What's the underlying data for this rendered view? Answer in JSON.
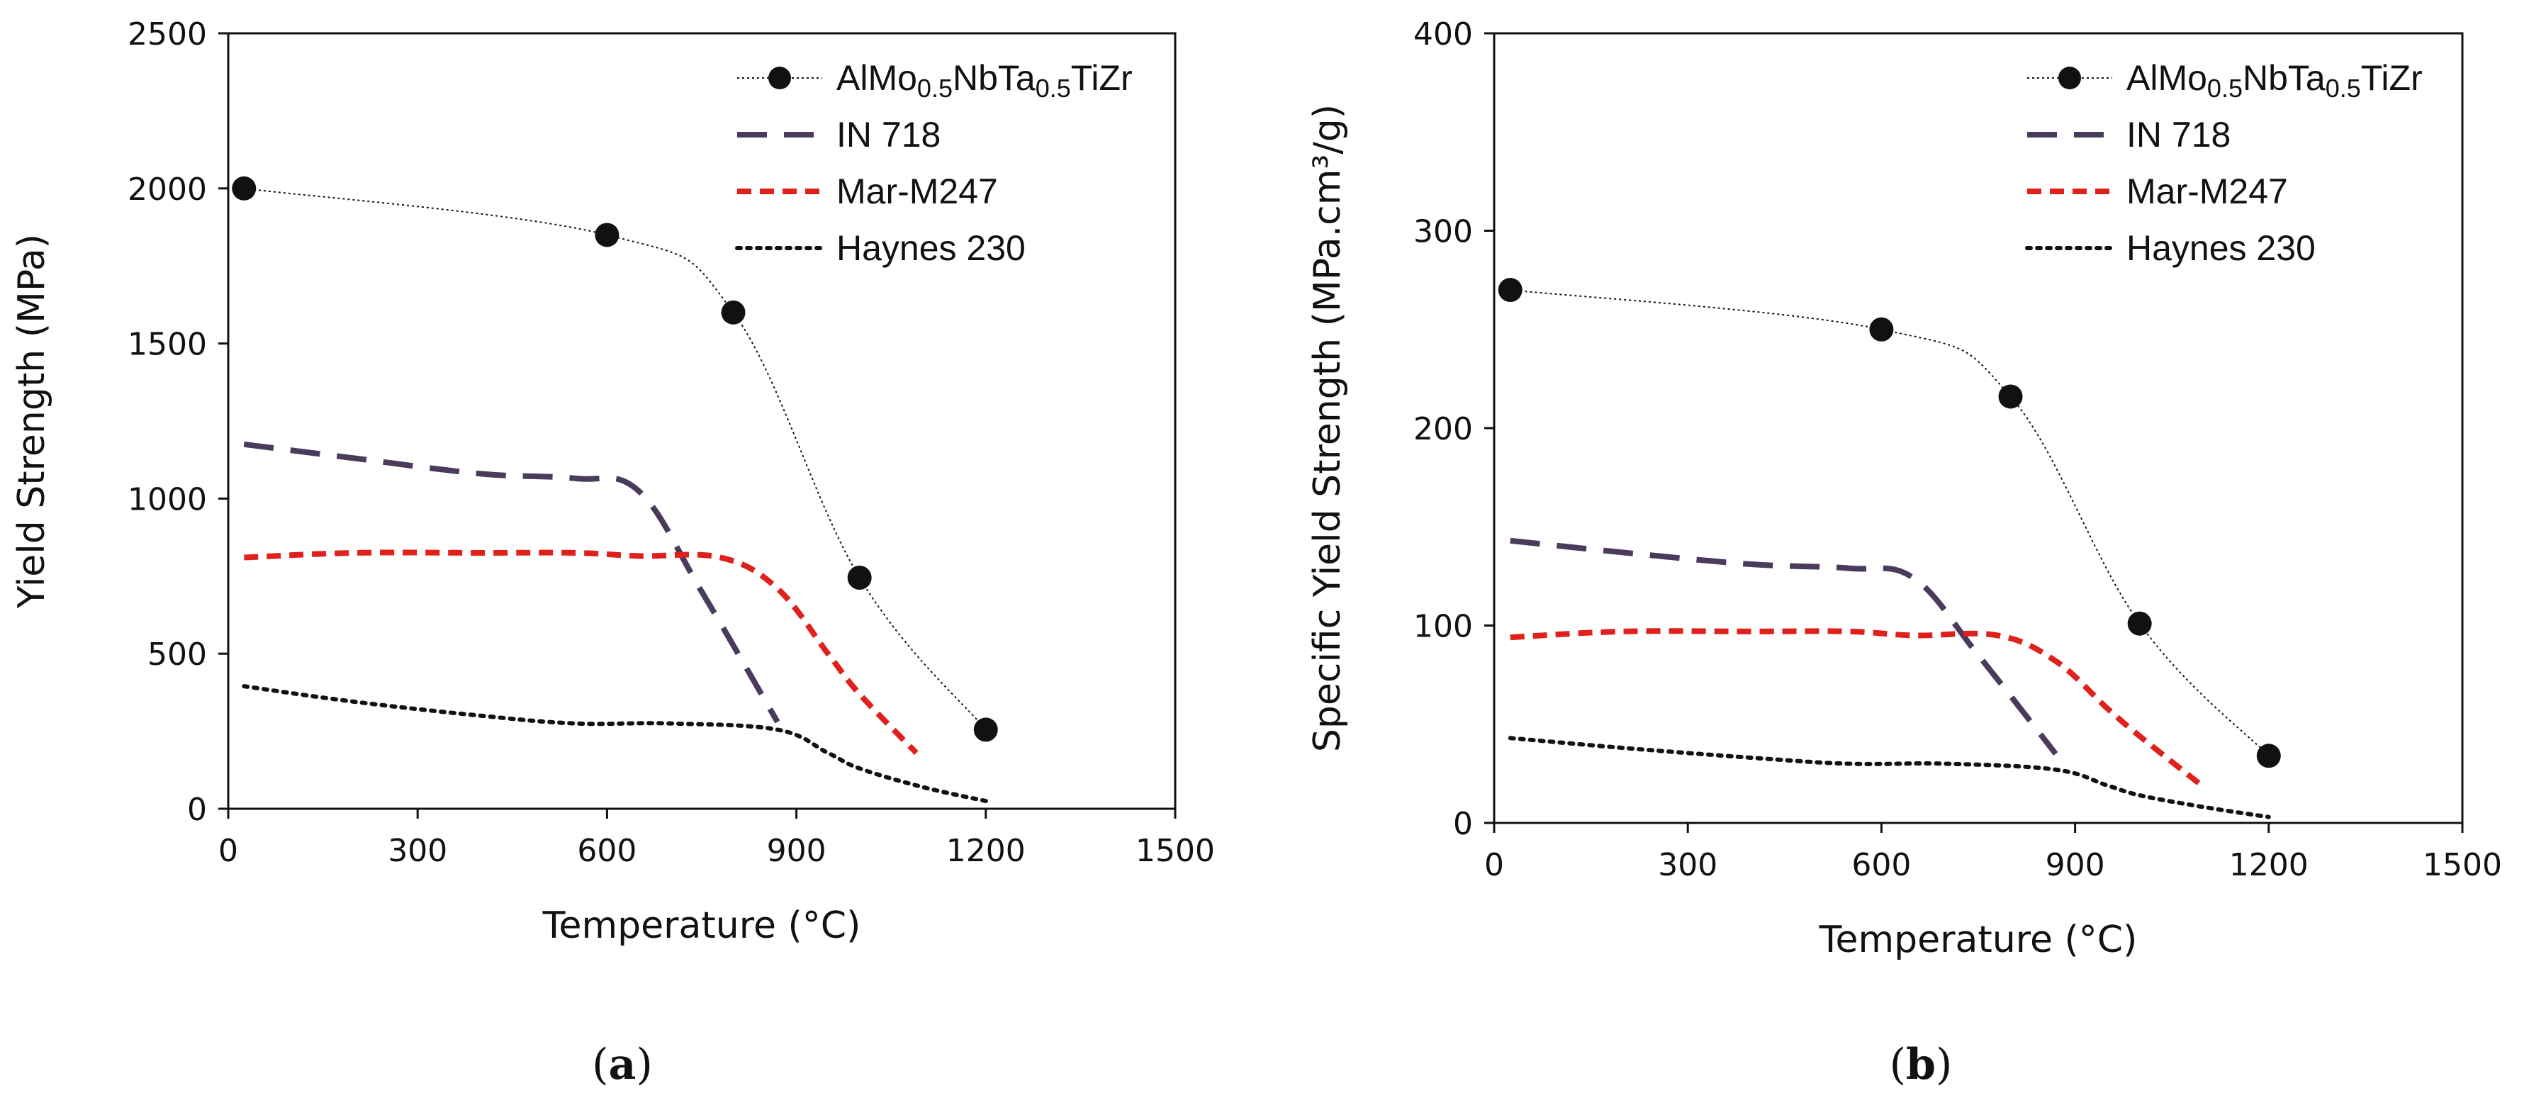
{
  "colors": {
    "alloy": "#111111",
    "in718": "#4a3b5c",
    "marm247": "#e0201b",
    "haynes230": "#111111"
  },
  "chart_data": [
    {
      "id": "a",
      "type": "line",
      "caption": {
        "open": "(",
        "label": "a",
        "close": ")"
      },
      "xlabel": "Temperature  (°C)",
      "ylabel": "Yield Strength  (MPa)",
      "xlim": [
        0,
        1500
      ],
      "ylim": [
        0,
        2500
      ],
      "xticks": [
        "0",
        "300",
        "600",
        "900",
        "1200",
        "1500"
      ],
      "yticks": [
        "0",
        "500",
        "1000",
        "1500",
        "2000",
        "2500"
      ],
      "legend": [
        {
          "name": "AlMo",
          "sub1": "0.5",
          "mid": "NbTa",
          "sub2": "0.5",
          "tail": "TiZr"
        },
        {
          "name": "IN 718"
        },
        {
          "name": "Mar-M247"
        },
        {
          "name": "Haynes 230"
        }
      ],
      "series": [
        {
          "name": "AlMo0.5NbTa0.5TiZr",
          "style": "dotted-markers",
          "x": [
            25,
            600,
            800,
            1000,
            1200
          ],
          "y": [
            2000,
            1850,
            1600,
            745,
            255
          ]
        },
        {
          "name": "IN 718",
          "style": "long-dash",
          "x": [
            25,
            200,
            400,
            550,
            650,
            750,
            870
          ],
          "y": [
            1175,
            1130,
            1080,
            1065,
            1025,
            700,
            280
          ]
        },
        {
          "name": "Mar-M247",
          "style": "short-dash",
          "x": [
            25,
            200,
            400,
            550,
            650,
            780,
            870,
            950,
            1000,
            1090
          ],
          "y": [
            810,
            825,
            825,
            825,
            815,
            810,
            710,
            500,
            370,
            180
          ]
        },
        {
          "name": "Haynes 230",
          "style": "dots",
          "x": [
            25,
            200,
            400,
            550,
            700,
            870,
            950,
            1000,
            1100,
            1200
          ],
          "y": [
            395,
            345,
            300,
            275,
            275,
            255,
            180,
            130,
            70,
            25
          ]
        }
      ]
    },
    {
      "id": "b",
      "type": "line",
      "caption": {
        "open": "(",
        "label": "b",
        "close": ")"
      },
      "xlabel": "Temperature  (°C)",
      "ylabel": "Specific Yield Strength  (MPa.cm³/g)",
      "xlim": [
        0,
        1500
      ],
      "ylim": [
        0,
        400
      ],
      "xticks": [
        "0",
        "300",
        "600",
        "900",
        "1200",
        "1500"
      ],
      "yticks": [
        "0",
        "100",
        "200",
        "300",
        "400"
      ],
      "legend": [
        {
          "name": "AlMo",
          "sub1": "0.5",
          "mid": "NbTa",
          "sub2": "0.5",
          "tail": "TiZr"
        },
        {
          "name": "IN 718"
        },
        {
          "name": "Mar-M247"
        },
        {
          "name": "Haynes 230"
        }
      ],
      "series": [
        {
          "name": "AlMo0.5NbTa0.5TiZr",
          "style": "dotted-markers",
          "x": [
            25,
            600,
            800,
            1000,
            1200
          ],
          "y": [
            270,
            250,
            216,
            101,
            34
          ]
        },
        {
          "name": "IN 718",
          "style": "long-dash",
          "x": [
            25,
            200,
            400,
            550,
            650,
            750,
            870
          ],
          "y": [
            143,
            137,
            131,
            129,
            124,
            85,
            35
          ]
        },
        {
          "name": "Mar-M247",
          "style": "short-dash",
          "x": [
            25,
            200,
            400,
            550,
            650,
            780,
            870,
            950,
            1000,
            1100
          ],
          "y": [
            94,
            97,
            97,
            97,
            95,
            95,
            82,
            58,
            44,
            18
          ]
        },
        {
          "name": "Haynes 230",
          "style": "dots",
          "x": [
            25,
            200,
            400,
            550,
            700,
            870,
            950,
            1000,
            1100,
            1200
          ],
          "y": [
            43,
            38,
            33,
            30,
            30,
            27,
            19,
            14,
            8,
            3
          ]
        }
      ]
    }
  ]
}
